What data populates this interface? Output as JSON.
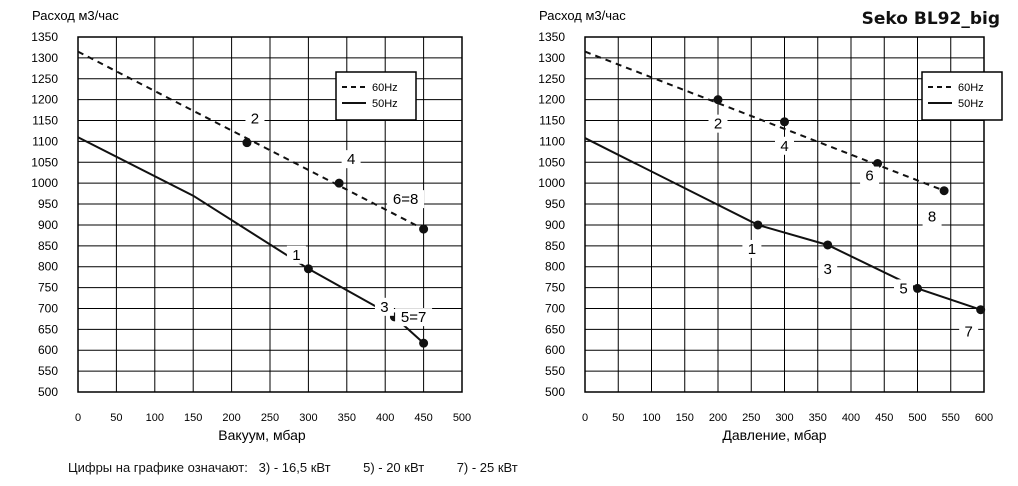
{
  "page_title": "Seko BL92_big",
  "footnote": {
    "prefix": "Цифры на графике означают:",
    "items": [
      "3) - 16,5 кВт",
      "5) - 20 кВт",
      "7) - 25 кВт"
    ]
  },
  "chart_data": [
    {
      "type": "line",
      "ylabel": "Расход м3/час",
      "xlabel": "Вакуум, мбар",
      "xlim": [
        0,
        500
      ],
      "ylim": [
        500,
        1350
      ],
      "x_ticks": [
        0,
        50,
        100,
        150,
        200,
        250,
        300,
        350,
        400,
        450,
        500
      ],
      "y_ticks": [
        500,
        550,
        600,
        650,
        700,
        750,
        800,
        850,
        900,
        950,
        1000,
        1050,
        1100,
        1150,
        1200,
        1250,
        1300,
        1350
      ],
      "grid": true,
      "legend": {
        "position": "top-right",
        "entries": [
          "60Hz",
          "50Hz"
        ]
      },
      "series": [
        {
          "name": "60Hz",
          "style": "dashed",
          "line": [
            [
              0,
              1315
            ],
            [
              450,
              890
            ]
          ],
          "points": [
            {
              "x": 220,
              "y": 1097,
              "label": "2"
            },
            {
              "x": 340,
              "y": 1000,
              "label": "4"
            },
            {
              "x": 450,
              "y": 890,
              "label": "6=8"
            }
          ]
        },
        {
          "name": "50Hz",
          "style": "solid",
          "line": [
            [
              0,
              1110
            ],
            [
              150,
              970
            ],
            [
              300,
              795
            ],
            [
              412,
              680
            ],
            [
              450,
              617
            ]
          ],
          "points": [
            {
              "x": 300,
              "y": 795,
              "label": "1"
            },
            {
              "x": 412,
              "y": 680,
              "label": "3"
            },
            {
              "x": 450,
              "y": 617,
              "label": "5=7"
            }
          ]
        }
      ]
    },
    {
      "type": "line",
      "ylabel": "Расход м3/час",
      "xlabel": "Давление, мбар",
      "xlim": [
        0,
        600
      ],
      "ylim": [
        500,
        1350
      ],
      "x_ticks": [
        0,
        50,
        100,
        150,
        200,
        250,
        300,
        350,
        400,
        450,
        500,
        550,
        600
      ],
      "y_ticks": [
        500,
        550,
        600,
        650,
        700,
        750,
        800,
        850,
        900,
        950,
        1000,
        1050,
        1100,
        1150,
        1200,
        1250,
        1300,
        1350
      ],
      "grid": true,
      "legend": {
        "position": "top-right",
        "entries": [
          "60Hz",
          "50Hz"
        ]
      },
      "series": [
        {
          "name": "60Hz",
          "style": "dashed",
          "line": [
            [
              0,
              1315
            ],
            [
              540,
              982
            ]
          ],
          "points": [
            {
              "x": 200,
              "y": 1200,
              "label": "2"
            },
            {
              "x": 300,
              "y": 1147,
              "label": "4"
            },
            {
              "x": 440,
              "y": 1047,
              "label": "6"
            },
            {
              "x": 540,
              "y": 982,
              "label": "8"
            }
          ]
        },
        {
          "name": "50Hz",
          "style": "solid",
          "line": [
            [
              0,
              1108
            ],
            [
              260,
              900
            ],
            [
              365,
              852
            ],
            [
              500,
              748
            ],
            [
              595,
              697
            ]
          ],
          "points": [
            {
              "x": 260,
              "y": 900,
              "label": "1"
            },
            {
              "x": 365,
              "y": 852,
              "label": "3"
            },
            {
              "x": 500,
              "y": 748,
              "label": "5"
            },
            {
              "x": 595,
              "y": 697,
              "label": "7"
            }
          ]
        }
      ]
    }
  ]
}
